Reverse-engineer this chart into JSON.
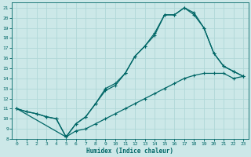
{
  "xlabel": "Humidex (Indice chaleur)",
  "bg_color": "#cce8e8",
  "grid_color": "#b0d8d8",
  "line_color": "#006666",
  "xlim": [
    -0.5,
    23.5
  ],
  "ylim": [
    8,
    21.5
  ],
  "xticks": [
    0,
    1,
    2,
    3,
    4,
    5,
    6,
    7,
    8,
    9,
    10,
    11,
    12,
    13,
    14,
    15,
    16,
    17,
    18,
    19,
    20,
    21,
    22,
    23
  ],
  "yticks": [
    8,
    9,
    10,
    11,
    12,
    13,
    14,
    15,
    16,
    17,
    18,
    19,
    20,
    21
  ],
  "line1_x": [
    0,
    1,
    2,
    3,
    4,
    5,
    6,
    7,
    8,
    9,
    10,
    11,
    12,
    13,
    14,
    15,
    16,
    17,
    18,
    19,
    20,
    21,
    22,
    23
  ],
  "line1_y": [
    11.0,
    10.7,
    10.5,
    10.2,
    10.0,
    8.2,
    8.8,
    9.0,
    9.5,
    10.0,
    10.5,
    11.0,
    11.5,
    12.0,
    12.5,
    13.0,
    13.5,
    14.0,
    14.3,
    14.5,
    14.5,
    14.5,
    14.0,
    14.2
  ],
  "line2_x": [
    0,
    1,
    2,
    3,
    4,
    5,
    6,
    7,
    8,
    9,
    10,
    11,
    12,
    13,
    14,
    15,
    16,
    17,
    18,
    19,
    20,
    21,
    22,
    23
  ],
  "line2_y": [
    11.0,
    10.7,
    10.5,
    10.2,
    10.0,
    8.2,
    9.5,
    10.2,
    11.5,
    12.8,
    13.3,
    14.5,
    16.2,
    17.2,
    18.3,
    20.3,
    20.3,
    21.0,
    20.3,
    19.0,
    16.5,
    15.2,
    14.7,
    14.2
  ],
  "line3_x": [
    0,
    5,
    6,
    7,
    8,
    9,
    10,
    11,
    12,
    13,
    14,
    15,
    16,
    17,
    18,
    19,
    20,
    21,
    22,
    23
  ],
  "line3_y": [
    11.0,
    8.2,
    9.5,
    10.2,
    11.5,
    13.0,
    13.5,
    14.5,
    16.2,
    17.2,
    18.5,
    20.3,
    20.3,
    21.0,
    20.5,
    19.0,
    16.5,
    15.2,
    14.7,
    14.2
  ]
}
